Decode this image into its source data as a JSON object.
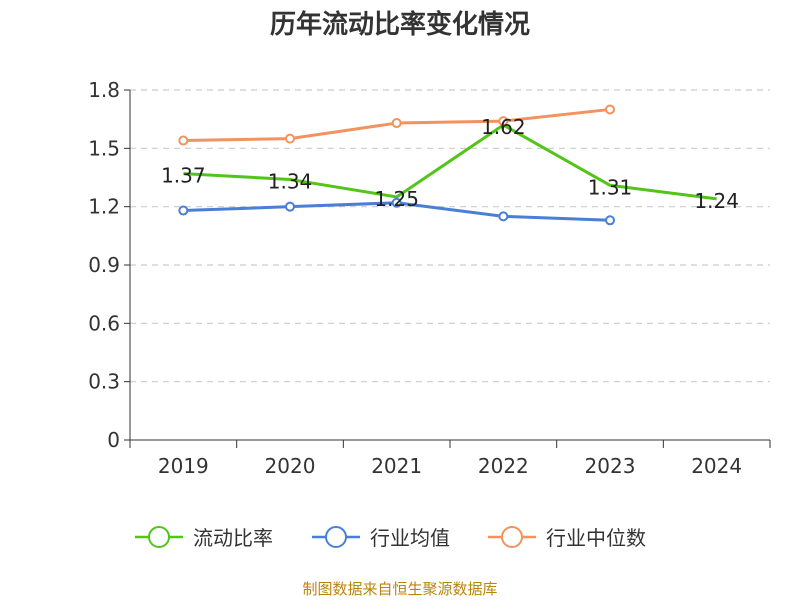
{
  "title": "历年流动比率变化情况",
  "source": "制图数据来自恒生聚源数据库",
  "chart_data": {
    "type": "line",
    "title": "历年流动比率变化情况",
    "categories": [
      "2019",
      "2020",
      "2021",
      "2022",
      "2023",
      "2024"
    ],
    "ylim": [
      0,
      1.8
    ],
    "yticks": [
      0,
      0.3,
      0.6,
      0.9,
      1.2,
      1.5,
      1.8
    ],
    "ytick_labels": [
      "0",
      "0.3",
      "0.6",
      "0.9",
      "1.2",
      "1.5",
      "1.8"
    ],
    "grid": true,
    "legend_position": "bottom",
    "series": [
      {
        "name": "流动比率",
        "color": "#52c41a",
        "values": [
          1.37,
          1.34,
          1.25,
          1.62,
          1.31,
          1.24
        ],
        "labels": [
          "1.37",
          "1.34",
          "1.25",
          "1.62",
          "1.31",
          "1.24"
        ],
        "markers": false
      },
      {
        "name": "行业均值",
        "color": "#4a7fd6",
        "values": [
          1.18,
          1.2,
          1.22,
          1.15,
          1.13,
          null
        ],
        "markers": true
      },
      {
        "name": "行业中位数",
        "color": "#f2925f",
        "values": [
          1.54,
          1.55,
          1.63,
          1.64,
          1.7,
          null
        ],
        "markers": true
      }
    ]
  }
}
